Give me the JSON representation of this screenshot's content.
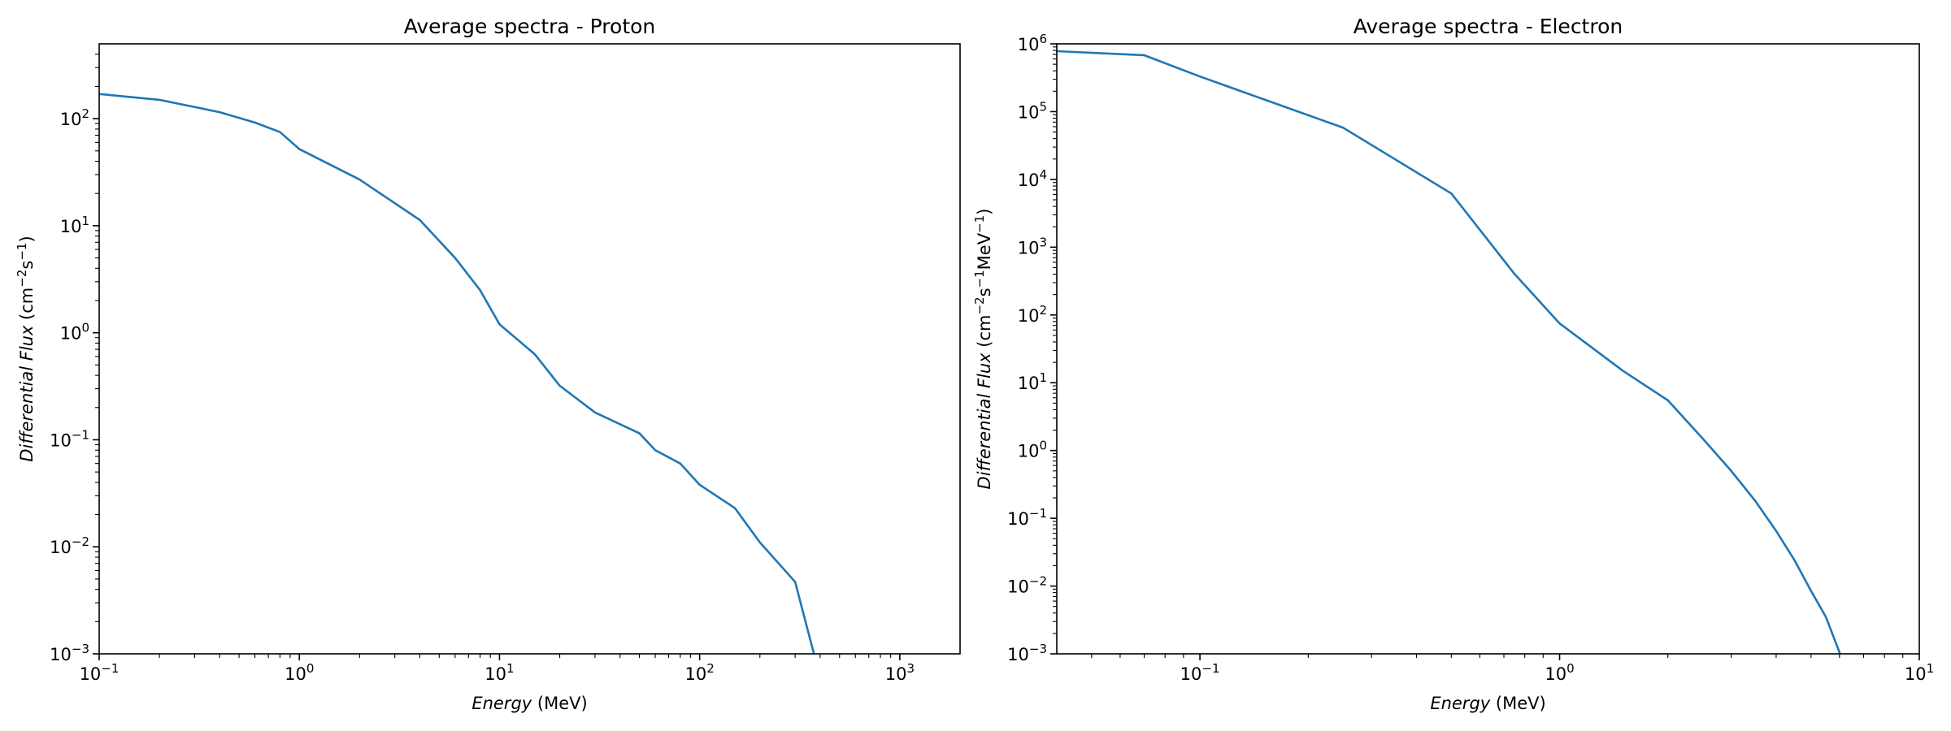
{
  "chart_data": [
    {
      "type": "line",
      "title": "Average spectra - Proton",
      "xlabel": {
        "italic": "Energy",
        "unit": " (MeV)"
      },
      "ylabel": {
        "italic": "Differential Flux",
        "unit": " (cm",
        "sup1": "−2",
        "mid": "s",
        "sup2": "−1",
        "end": ")"
      },
      "xscale": "log",
      "yscale": "log",
      "xlim": [
        0.1,
        2000
      ],
      "ylim": [
        0.001,
        500
      ],
      "grid": false,
      "line_color": "#1f77b4",
      "x_ticks": [
        {
          "value": 0.1,
          "base": "10",
          "exp": "−1"
        },
        {
          "value": 1,
          "base": "10",
          "exp": "0"
        },
        {
          "value": 10,
          "base": "10",
          "exp": "1"
        },
        {
          "value": 100,
          "base": "10",
          "exp": "2"
        },
        {
          "value": 1000,
          "base": "10",
          "exp": "3"
        }
      ],
      "y_ticks": [
        {
          "value": 0.001,
          "base": "10",
          "exp": "−3"
        },
        {
          "value": 0.01,
          "base": "10",
          "exp": "−2"
        },
        {
          "value": 0.1,
          "base": "10",
          "exp": "−1"
        },
        {
          "value": 1,
          "base": "10",
          "exp": "0"
        },
        {
          "value": 10,
          "base": "10",
          "exp": "1"
        },
        {
          "value": 100,
          "base": "10",
          "exp": "2"
        }
      ],
      "series": [
        {
          "x": [
            0.1,
            0.2,
            0.4,
            0.6,
            0.8,
            1.0,
            2.0,
            4.0,
            6.0,
            8.0,
            10,
            15,
            20,
            30,
            50,
            60,
            80,
            100,
            150,
            200,
            300,
            400
          ],
          "y": [
            170,
            150,
            115,
            92,
            75,
            52,
            27,
            11.3,
            5.0,
            2.5,
            1.2,
            0.63,
            0.32,
            0.18,
            0.115,
            0.08,
            0.06,
            0.038,
            0.023,
            0.011,
            0.0047,
            0.0006
          ]
        }
      ]
    },
    {
      "type": "line",
      "title": "Average spectra - Electron",
      "xlabel": {
        "italic": "Energy",
        "unit": " (MeV)"
      },
      "ylabel": {
        "italic": "Differential Flux",
        "unit": " (cm",
        "sup1": "−2",
        "mid": "s",
        "sup2": "−1",
        "end": "MeV",
        "sup3": "−1",
        "close": ")"
      },
      "xscale": "log",
      "yscale": "log",
      "xlim": [
        0.04,
        10
      ],
      "ylim": [
        0.001,
        1000000
      ],
      "grid": false,
      "line_color": "#1f77b4",
      "x_ticks": [
        {
          "value": 0.1,
          "base": "10",
          "exp": "−1"
        },
        {
          "value": 1,
          "base": "10",
          "exp": "0"
        },
        {
          "value": 10,
          "base": "10",
          "exp": "1"
        }
      ],
      "y_ticks": [
        {
          "value": 0.001,
          "base": "10",
          "exp": "−3"
        },
        {
          "value": 0.01,
          "base": "10",
          "exp": "−2"
        },
        {
          "value": 0.1,
          "base": "10",
          "exp": "−1"
        },
        {
          "value": 1,
          "base": "10",
          "exp": "0"
        },
        {
          "value": 10,
          "base": "10",
          "exp": "1"
        },
        {
          "value": 100,
          "base": "10",
          "exp": "2"
        },
        {
          "value": 1000,
          "base": "10",
          "exp": "3"
        },
        {
          "value": 10000,
          "base": "10",
          "exp": "4"
        },
        {
          "value": 100000,
          "base": "10",
          "exp": "5"
        },
        {
          "value": 1000000,
          "base": "10",
          "exp": "6"
        }
      ],
      "series": [
        {
          "x": [
            0.04,
            0.07,
            0.1,
            0.25,
            0.5,
            0.75,
            1.0,
            1.5,
            2.0,
            2.5,
            3.0,
            3.5,
            4.0,
            4.5,
            5.0,
            5.5,
            6.0,
            6.2
          ],
          "y": [
            780000,
            680000,
            330000,
            58000,
            6200,
            400,
            75,
            15,
            5.5,
            1.5,
            0.5,
            0.18,
            0.065,
            0.024,
            0.0085,
            0.0035,
            0.00105,
            0.0005
          ]
        }
      ]
    }
  ]
}
